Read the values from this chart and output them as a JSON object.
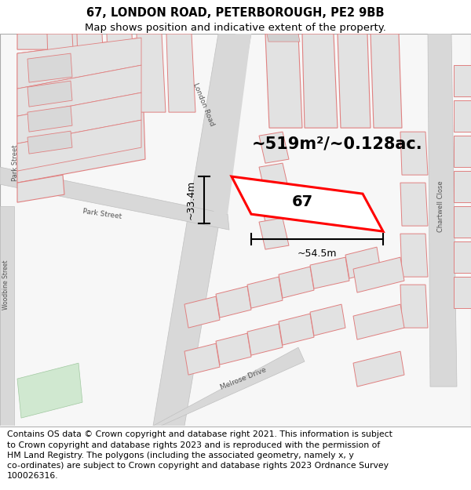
{
  "title_line1": "67, LONDON ROAD, PETERBOROUGH, PE2 9BB",
  "title_line2": "Map shows position and indicative extent of the property.",
  "footer_text": "Contains OS data © Crown copyright and database right 2021. This information is subject\nto Crown copyright and database rights 2023 and is reproduced with the permission of\nHM Land Registry. The polygons (including the associated geometry, namely x, y\nco-ordinates) are subject to Crown copyright and database rights 2023 Ordnance Survey\n100026316.",
  "area_text": "~519m²/~0.128ac.",
  "dim_width": "~54.5m",
  "dim_height": "~33.4m",
  "label_67": "67",
  "map_bg": "#f7f7f7",
  "road_color": "#d8d8d8",
  "building_fill": "#e2e2e2",
  "building_stroke": "#e08080",
  "highlight_stroke": "#ff0000",
  "title_fontsize": 10.5,
  "subtitle_fontsize": 9.5,
  "footer_fontsize": 7.8,
  "map_border_color": "#aaaaaa",
  "dim_fontsize": 9,
  "area_fontsize": 15,
  "label_fontsize": 14
}
